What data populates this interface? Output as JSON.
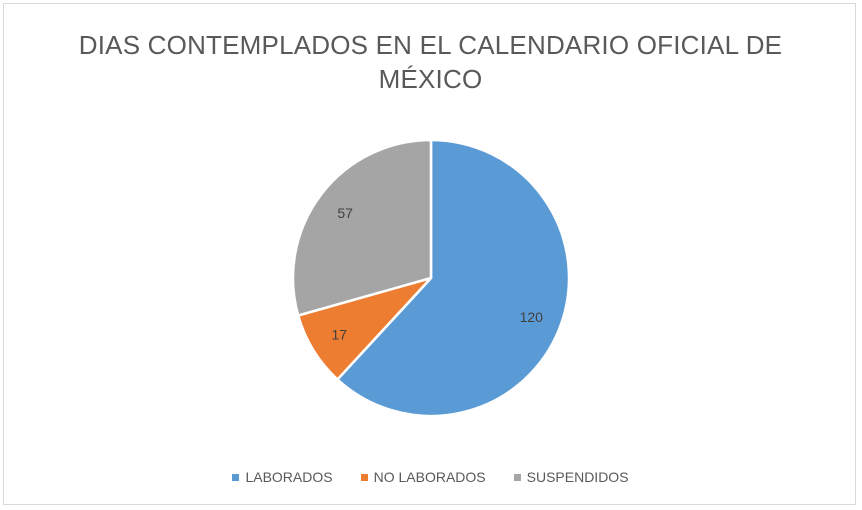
{
  "chart_data": {
    "type": "pie",
    "title": "DIAS CONTEMPLADOS EN EL CALENDARIO OFICIAL DE MÉXICO",
    "title_lines": [
      "DIAS CONTEMPLADOS EN EL CALENDARIO OFICIAL DE",
      "MÉXICO"
    ],
    "categories": [
      "LABORADOS",
      "NO LABORADOS",
      "SUSPENDIDOS"
    ],
    "values": [
      120,
      17,
      57
    ],
    "colors": [
      "#5b9bd5",
      "#ed7d31",
      "#a5a5a5"
    ],
    "legend_position": "bottom",
    "data_labels": true
  }
}
